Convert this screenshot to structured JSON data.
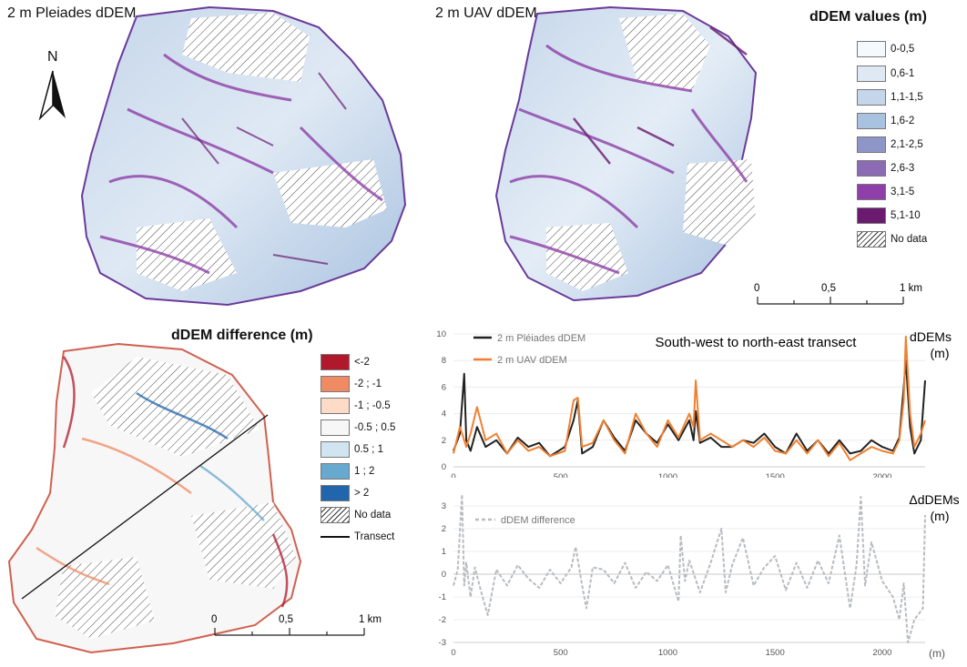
{
  "maps": {
    "pleiades_title": "2 m Pleiades dDEM",
    "uav_title": "2 m UAV dDEM",
    "north_label": "N"
  },
  "legend_values": {
    "title": "dDEM values (m)",
    "items": [
      {
        "label": "0-0,5",
        "color": "#f4f9fd"
      },
      {
        "label": "0,6-1",
        "color": "#dfe9f4"
      },
      {
        "label": "1,1-1,5",
        "color": "#c5d6ea"
      },
      {
        "label": "1,6-2",
        "color": "#a9c2e0"
      },
      {
        "label": "2,1-2,5",
        "color": "#8e96c8"
      },
      {
        "label": "2,6-3",
        "color": "#8a6bb4"
      },
      {
        "label": "3,1-5",
        "color": "#8e3fa8"
      },
      {
        "label": "5,1-10",
        "color": "#6a1a6f"
      },
      {
        "label": "No data",
        "color": "hatch"
      }
    ]
  },
  "legend_diff": {
    "title": "dDEM difference (m)",
    "items": [
      {
        "label": "<-2",
        "color": "#b2182b"
      },
      {
        "label": "-2 ; -1",
        "color": "#ef8a62"
      },
      {
        "label": "-1 ; -0.5",
        "color": "#fddbc7"
      },
      {
        "label": "-0.5 ; 0.5",
        "color": "#f7f7f7"
      },
      {
        "label": "0.5 ; 1",
        "color": "#d1e5f0"
      },
      {
        "label": "1 ; 2",
        "color": "#67a9cf"
      },
      {
        "label": "> 2",
        "color": "#2166ac"
      },
      {
        "label": "No data",
        "color": "hatch"
      },
      {
        "label": "Transect",
        "color": "line"
      }
    ]
  },
  "scalebars": {
    "labels": [
      "0",
      "0,5",
      "1 km"
    ]
  },
  "chart_data": [
    {
      "type": "line",
      "title": "South-west to north-east transect",
      "ylabel": "dDEMs",
      "ylabel_unit": "(m)",
      "xlim": [
        0,
        2200
      ],
      "ylim": [
        0,
        10
      ],
      "x_ticks": [
        0,
        500,
        1000,
        1500,
        2000
      ],
      "y_ticks": [
        0,
        2,
        4,
        6,
        8,
        10
      ],
      "x": [
        0,
        30,
        50,
        60,
        80,
        110,
        150,
        200,
        250,
        300,
        350,
        400,
        450,
        520,
        560,
        580,
        600,
        650,
        700,
        750,
        800,
        850,
        900,
        950,
        1000,
        1050,
        1100,
        1120,
        1130,
        1150,
        1200,
        1250,
        1300,
        1350,
        1400,
        1450,
        1500,
        1550,
        1600,
        1650,
        1700,
        1750,
        1800,
        1850,
        1900,
        1950,
        2000,
        2050,
        2080,
        2100,
        2110,
        2130,
        2150,
        2180,
        2200
      ],
      "series": [
        {
          "name": "2 m Pléiades dDEM",
          "color": "#222222",
          "values": [
            1.2,
            2.5,
            7.0,
            2.0,
            1.2,
            3.0,
            1.5,
            2.0,
            1.0,
            2.2,
            1.5,
            1.8,
            0.8,
            1.5,
            3.5,
            5.0,
            1.0,
            1.5,
            3.5,
            2.2,
            1.2,
            3.5,
            2.5,
            1.8,
            3.2,
            2.0,
            3.5,
            2.0,
            4.2,
            1.8,
            2.2,
            1.5,
            1.5,
            2.0,
            1.8,
            2.5,
            1.5,
            1.0,
            2.5,
            1.2,
            2.0,
            1.0,
            2.0,
            1.0,
            1.2,
            2.0,
            1.5,
            1.2,
            2.2,
            6.0,
            8.0,
            3.0,
            1.0,
            2.0,
            6.5
          ]
        },
        {
          "name": "2 m UAV dDEM",
          "color": "#f08030",
          "values": [
            1.0,
            3.0,
            2.0,
            1.5,
            2.5,
            4.5,
            2.0,
            2.5,
            1.0,
            2.0,
            1.2,
            1.5,
            0.8,
            1.2,
            5.0,
            5.2,
            1.5,
            1.8,
            3.5,
            2.0,
            1.0,
            4.0,
            2.5,
            1.5,
            3.5,
            2.2,
            4.0,
            3.0,
            6.5,
            2.0,
            2.5,
            2.0,
            1.5,
            2.0,
            1.5,
            2.2,
            1.2,
            1.0,
            2.0,
            1.0,
            2.0,
            0.8,
            1.8,
            0.5,
            1.0,
            1.5,
            1.2,
            1.0,
            2.0,
            5.0,
            9.8,
            4.0,
            1.5,
            2.5,
            3.5
          ]
        }
      ]
    },
    {
      "type": "line",
      "ylabel": "ΔdDEMs",
      "ylabel_unit": "(m)",
      "xlabel": "(m)",
      "xlim": [
        0,
        2200
      ],
      "ylim": [
        -3,
        3
      ],
      "x_ticks": [
        0,
        500,
        1000,
        1500,
        2000
      ],
      "y_ticks": [
        -3,
        -2,
        -1,
        0,
        1,
        2,
        3
      ],
      "x": [
        0,
        20,
        40,
        50,
        60,
        80,
        100,
        130,
        160,
        200,
        250,
        300,
        350,
        400,
        450,
        500,
        550,
        570,
        600,
        620,
        650,
        700,
        750,
        800,
        850,
        900,
        950,
        1000,
        1050,
        1060,
        1080,
        1100,
        1150,
        1200,
        1250,
        1270,
        1300,
        1350,
        1400,
        1450,
        1500,
        1550,
        1600,
        1650,
        1700,
        1750,
        1800,
        1850,
        1880,
        1900,
        1920,
        1950,
        2000,
        2050,
        2080,
        2100,
        2120,
        2150,
        2190,
        2200
      ],
      "series": [
        {
          "name": "dDEM difference",
          "color": "#b8bcc0",
          "dashed": true,
          "values": [
            -0.5,
            0.2,
            3.5,
            -0.5,
            0.5,
            -1.0,
            0.3,
            -0.8,
            -1.8,
            0.2,
            -0.5,
            0.4,
            -0.2,
            -0.6,
            0.2,
            -0.4,
            0.3,
            1.2,
            -0.5,
            -1.5,
            0.3,
            0.2,
            -0.4,
            0.5,
            -0.6,
            0.1,
            -0.3,
            0.4,
            -1.2,
            1.7,
            -0.3,
            0.6,
            -0.8,
            0.5,
            2.0,
            -0.8,
            0.4,
            1.6,
            -0.5,
            0.3,
            0.8,
            -0.7,
            0.5,
            -0.6,
            0.6,
            -0.4,
            1.7,
            -1.5,
            0.4,
            3.4,
            -0.5,
            1.4,
            -0.3,
            -1.0,
            -2.0,
            -0.4,
            -3.0,
            -2.0,
            -1.5,
            2.6
          ]
        }
      ]
    }
  ]
}
